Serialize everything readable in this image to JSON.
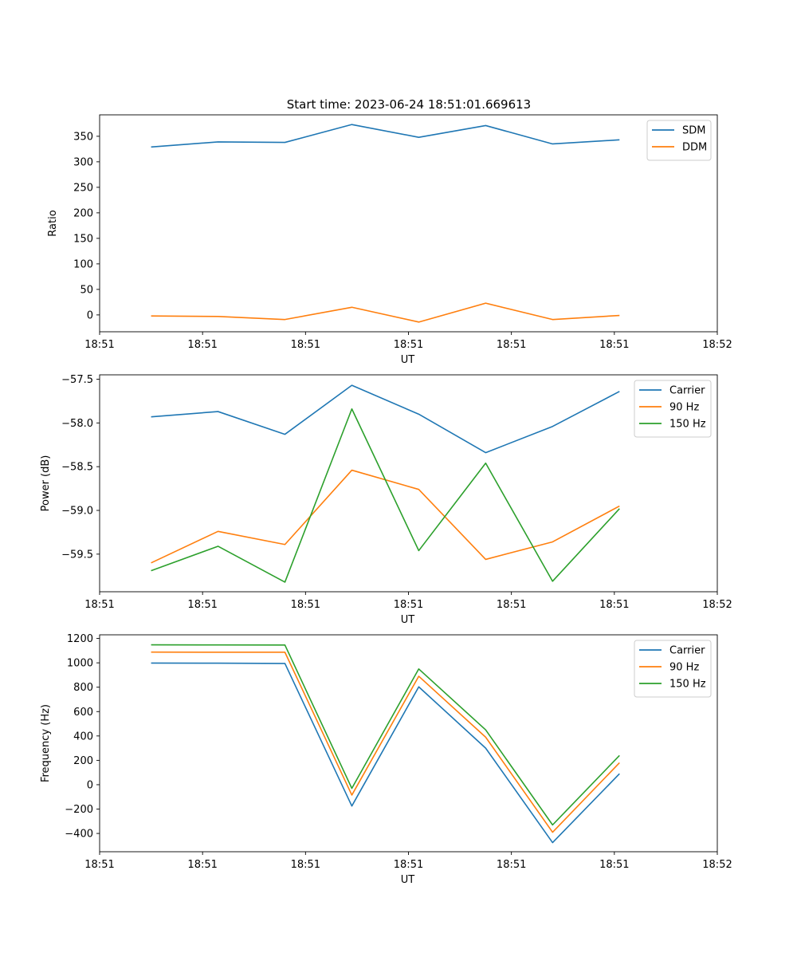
{
  "figure": {
    "title": "Start time: 2023-06-24 18:51:01.669613"
  },
  "chart_data": [
    {
      "type": "line",
      "xlabel": "UT",
      "ylabel": "Ratio",
      "x": [
        0.5,
        1.15,
        1.8,
        2.45,
        3.1,
        3.75,
        4.4,
        5.05
      ],
      "xlim": [
        0,
        6
      ],
      "xticks": [
        0,
        1,
        2,
        3,
        4,
        5,
        6
      ],
      "xtick_labels": [
        "18:51",
        "18:51",
        "18:51",
        "18:51",
        "18:51",
        "18:51",
        "18:52"
      ],
      "ylim": [
        -33,
        392
      ],
      "yticks": [
        0,
        50,
        100,
        150,
        200,
        250,
        300,
        350
      ],
      "legend": "top-right",
      "grid": false,
      "series": [
        {
          "name": "SDM",
          "color": "#1f77b4",
          "values": [
            329,
            339,
            338,
            373,
            348,
            371,
            335,
            343
          ]
        },
        {
          "name": "DDM",
          "color": "#ff7f0e",
          "values": [
            -2,
            -3,
            -9,
            15,
            -14,
            23,
            -9,
            -1
          ]
        }
      ]
    },
    {
      "type": "line",
      "xlabel": "UT",
      "ylabel": "Power (dB)",
      "x": [
        0.5,
        1.15,
        1.8,
        2.45,
        3.1,
        3.75,
        4.4,
        5.05
      ],
      "xlim": [
        0,
        6
      ],
      "xticks": [
        0,
        1,
        2,
        3,
        4,
        5,
        6
      ],
      "xtick_labels": [
        "18:51",
        "18:51",
        "18:51",
        "18:51",
        "18:51",
        "18:51",
        "18:52"
      ],
      "ylim": [
        -59.93,
        -57.45
      ],
      "yticks": [
        -59.5,
        -59.0,
        -58.5,
        -58.0,
        -57.5
      ],
      "ytick_labels": [
        "−59.5",
        "−59.0",
        "−58.5",
        "−58.0",
        "−57.5"
      ],
      "legend": "top-right",
      "grid": false,
      "series": [
        {
          "name": "Carrier",
          "color": "#1f77b4",
          "values": [
            -57.93,
            -57.87,
            -58.13,
            -57.57,
            -57.9,
            -58.34,
            -58.04,
            -57.64
          ]
        },
        {
          "name": "90 Hz",
          "color": "#ff7f0e",
          "values": [
            -59.6,
            -59.24,
            -59.39,
            -58.54,
            -58.76,
            -59.56,
            -59.36,
            -58.95
          ]
        },
        {
          "name": "150 Hz",
          "color": "#2ca02c",
          "values": [
            -59.69,
            -59.41,
            -59.82,
            -57.84,
            -59.46,
            -58.46,
            -59.81,
            -58.98
          ]
        }
      ]
    },
    {
      "type": "line",
      "xlabel": "UT",
      "ylabel": "Frequency (Hz)",
      "x": [
        0.5,
        1.15,
        1.8,
        2.45,
        3.1,
        3.75,
        4.4,
        5.05
      ],
      "xlim": [
        0,
        6
      ],
      "xticks": [
        0,
        1,
        2,
        3,
        4,
        5,
        6
      ],
      "xtick_labels": [
        "18:51",
        "18:51",
        "18:51",
        "18:51",
        "18:51",
        "18:51",
        "18:52"
      ],
      "ylim": [
        -550,
        1230
      ],
      "yticks": [
        -400,
        -200,
        0,
        200,
        400,
        600,
        800,
        1000,
        1200
      ],
      "ytick_labels": [
        "−400",
        "−200",
        "0",
        "200",
        "400",
        "600",
        "800",
        "1000",
        "1200"
      ],
      "legend": "top-right",
      "grid": false,
      "series": [
        {
          "name": "Carrier",
          "color": "#1f77b4",
          "values": [
            998,
            997,
            995,
            -175,
            803,
            300,
            -475,
            90
          ]
        },
        {
          "name": "90 Hz",
          "color": "#ff7f0e",
          "values": [
            1088,
            1087,
            1087,
            -85,
            890,
            390,
            -390,
            180
          ]
        },
        {
          "name": "150 Hz",
          "color": "#2ca02c",
          "values": [
            1148,
            1147,
            1146,
            -30,
            950,
            450,
            -330,
            240
          ]
        }
      ]
    }
  ]
}
